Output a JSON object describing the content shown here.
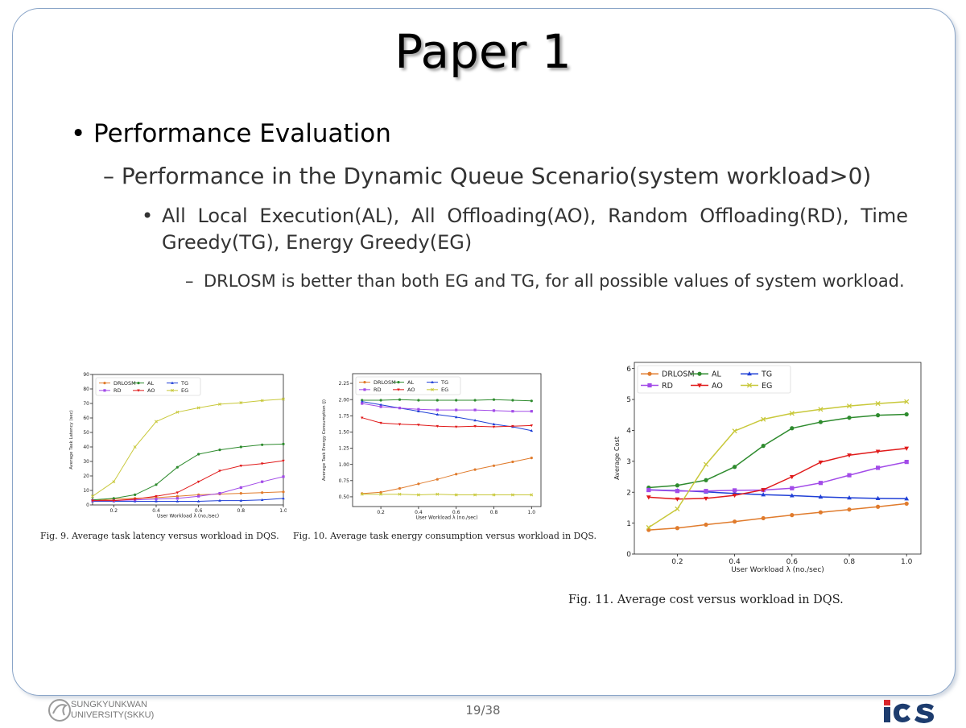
{
  "slide": {
    "title": "Paper 1",
    "bullet1": "Performance Evaluation",
    "bullet2": "Performance in the Dynamic Queue Scenario(system workload>0)",
    "bullet3": "All Local Execution(AL), All Offloading(AO), Random Offloading(RD), Time Greedy(TG), Energy Greedy(EG)",
    "bullet4": "DRLOSM is better than both EG and TG, for all possible values of system workload.",
    "page_number": "19/38"
  },
  "footer": {
    "university_line1": "SUNGKYUNKWAN",
    "university_line2": "UNIVERSITY(SKKU)",
    "lab_logo_text": "iCS"
  },
  "colors": {
    "DRLOSM": "#e07b2c",
    "AL": "#2e8b2e",
    "TG": "#1f3fd6",
    "RD": "#a24be8",
    "AO": "#e01a1a",
    "EG": "#c8c83a",
    "frame_border": "#8aa5c8",
    "logo_red": "#d8262c",
    "logo_navy": "#1d3c6e"
  },
  "chart_data": [
    {
      "type": "line",
      "caption": "Fig. 9.   Average task latency versus workload in DQS.",
      "xlabel": "User Workload λ (no./sec)",
      "ylabel": "Average Task Latency (sec)",
      "xlim": [
        0.1,
        1.0
      ],
      "ylim": [
        0,
        90
      ],
      "xticks": [
        "0.2",
        "0.4",
        "0.6",
        "0.8",
        "1.0"
      ],
      "xtick_values": [
        0.2,
        0.4,
        0.6,
        0.8,
        1.0
      ],
      "yticks": [
        "0",
        "10",
        "20",
        "30",
        "40",
        "50",
        "60",
        "70",
        "80",
        "90"
      ],
      "ytick_values": [
        0,
        10,
        20,
        30,
        40,
        50,
        60,
        70,
        80,
        90
      ],
      "legend_position": "top-left",
      "x": [
        0.1,
        0.2,
        0.3,
        0.4,
        0.5,
        0.6,
        0.7,
        0.8,
        0.9,
        1.0
      ],
      "series": [
        {
          "name": "DRLOSM",
          "marker": "circle",
          "values": [
            3,
            4,
            4.5,
            5,
            6,
            7,
            7.5,
            8,
            8.5,
            9
          ]
        },
        {
          "name": "AL",
          "marker": "circle",
          "values": [
            3.5,
            4.5,
            7,
            14,
            26,
            35,
            38,
            40,
            41.5,
            42
          ]
        },
        {
          "name": "TG",
          "marker": "triangle",
          "values": [
            2.5,
            2.5,
            2.5,
            2.5,
            2.5,
            2.5,
            3,
            3,
            3.5,
            4.5
          ]
        },
        {
          "name": "RD",
          "marker": "square",
          "values": [
            3,
            3,
            3.5,
            4,
            4.5,
            6,
            8,
            12,
            16,
            19.5
          ]
        },
        {
          "name": "AO",
          "marker": "triangle-down",
          "values": [
            3,
            3,
            4,
            6,
            8.5,
            16,
            23.5,
            27,
            28.5,
            30.5
          ]
        },
        {
          "name": "EG",
          "marker": "x",
          "values": [
            6,
            16,
            40,
            57.5,
            64,
            67,
            69.5,
            70.5,
            72,
            73
          ]
        }
      ]
    },
    {
      "type": "line",
      "caption": "Fig. 10.   Average task energy consumption versus workload in DQS.",
      "xlabel": "User Workload λ (no./sec)",
      "ylabel": "Average Task Energy Consumption (J)",
      "xlim": [
        0.05,
        1.05
      ],
      "ylim": [
        0.35,
        2.4
      ],
      "xticks": [
        "0.2",
        "0.4",
        "0.6",
        "0.8",
        "1.0"
      ],
      "xtick_values": [
        0.2,
        0.4,
        0.6,
        0.8,
        1.0
      ],
      "yticks": [
        "0.50",
        "0.75",
        "1.00",
        "1.25",
        "1.50",
        "1.75",
        "2.00",
        "2.25"
      ],
      "ytick_values": [
        0.5,
        0.75,
        1.0,
        1.25,
        1.5,
        1.75,
        2.0,
        2.25
      ],
      "legend_position": "top-left",
      "x": [
        0.1,
        0.2,
        0.3,
        0.4,
        0.5,
        0.6,
        0.7,
        0.8,
        0.9,
        1.0
      ],
      "series": [
        {
          "name": "DRLOSM",
          "marker": "circle",
          "values": [
            0.55,
            0.57,
            0.63,
            0.7,
            0.77,
            0.85,
            0.92,
            0.98,
            1.04,
            1.1
          ]
        },
        {
          "name": "AL",
          "marker": "circle",
          "values": [
            1.99,
            1.99,
            2.0,
            1.99,
            1.99,
            1.99,
            1.99,
            2.0,
            1.99,
            1.98
          ]
        },
        {
          "name": "TG",
          "marker": "triangle",
          "values": [
            1.97,
            1.92,
            1.87,
            1.82,
            1.77,
            1.73,
            1.68,
            1.62,
            1.58,
            1.52
          ]
        },
        {
          "name": "RD",
          "marker": "square",
          "values": [
            1.94,
            1.89,
            1.87,
            1.85,
            1.84,
            1.84,
            1.84,
            1.83,
            1.82,
            1.82
          ]
        },
        {
          "name": "AO",
          "marker": "triangle-down",
          "values": [
            1.72,
            1.64,
            1.62,
            1.61,
            1.59,
            1.58,
            1.59,
            1.58,
            1.59,
            1.6
          ]
        },
        {
          "name": "EG",
          "marker": "x",
          "values": [
            0.54,
            0.54,
            0.54,
            0.53,
            0.54,
            0.53,
            0.53,
            0.53,
            0.53,
            0.53
          ]
        }
      ]
    },
    {
      "type": "line",
      "caption": "Fig. 11.   Average cost versus workload in DQS.",
      "xlabel": "User Workload λ (no./sec)",
      "ylabel": "Average Cost",
      "xlim": [
        0.05,
        1.05
      ],
      "ylim": [
        0,
        6.2
      ],
      "xticks": [
        "0.2",
        "0.4",
        "0.6",
        "0.8",
        "1.0"
      ],
      "xtick_values": [
        0.2,
        0.4,
        0.6,
        0.8,
        1.0
      ],
      "yticks": [
        "0",
        "1",
        "2",
        "3",
        "4",
        "5",
        "6"
      ],
      "ytick_values": [
        0,
        1,
        2,
        3,
        4,
        5,
        6
      ],
      "legend_position": "top-left",
      "x": [
        0.1,
        0.2,
        0.3,
        0.4,
        0.5,
        0.6,
        0.7,
        0.8,
        0.9,
        1.0
      ],
      "series": [
        {
          "name": "DRLOSM",
          "marker": "circle",
          "values": [
            0.78,
            0.84,
            0.95,
            1.05,
            1.16,
            1.26,
            1.35,
            1.44,
            1.53,
            1.63
          ]
        },
        {
          "name": "AL",
          "marker": "circle",
          "values": [
            2.15,
            2.22,
            2.39,
            2.82,
            3.5,
            4.07,
            4.27,
            4.41,
            4.49,
            4.52
          ]
        },
        {
          "name": "TG",
          "marker": "triangle",
          "values": [
            2.08,
            2.05,
            2.01,
            1.96,
            1.92,
            1.89,
            1.85,
            1.82,
            1.8,
            1.79
          ]
        },
        {
          "name": "RD",
          "marker": "square",
          "values": [
            2.07,
            2.04,
            2.04,
            2.06,
            2.07,
            2.13,
            2.3,
            2.55,
            2.79,
            2.98
          ]
        },
        {
          "name": "AO",
          "marker": "triangle-down",
          "values": [
            1.84,
            1.78,
            1.8,
            1.9,
            2.08,
            2.5,
            2.97,
            3.2,
            3.32,
            3.42
          ]
        },
        {
          "name": "EG",
          "marker": "x",
          "values": [
            0.86,
            1.46,
            2.9,
            3.98,
            4.36,
            4.55,
            4.68,
            4.79,
            4.87,
            4.93
          ]
        }
      ]
    }
  ]
}
